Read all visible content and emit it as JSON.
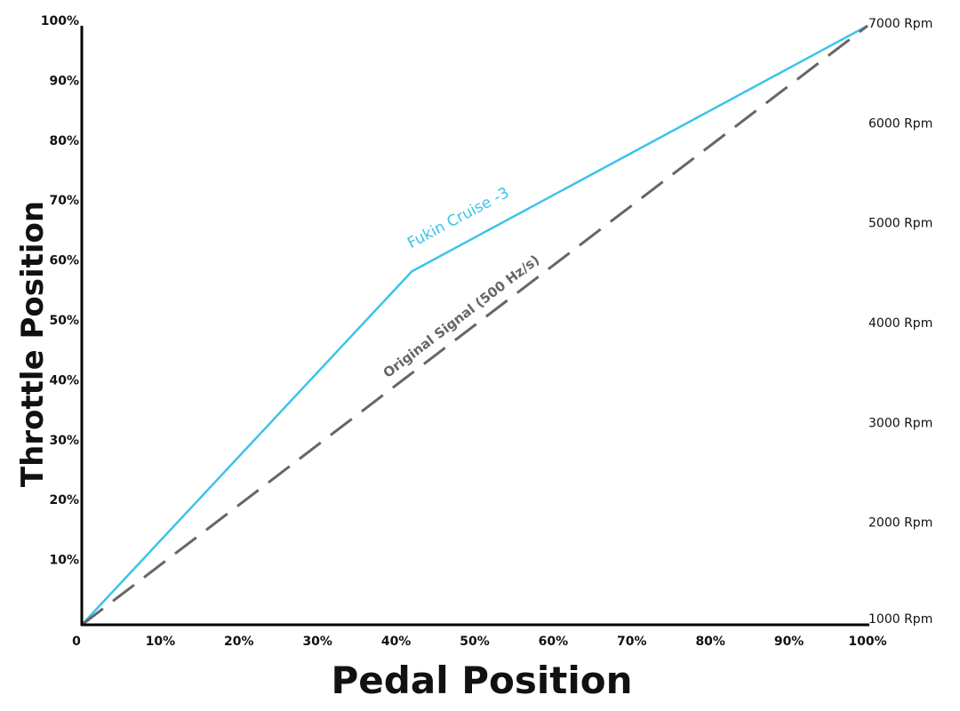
{
  "chart_data": {
    "type": "line",
    "title": "",
    "xlabel": "Pedal Position",
    "ylabel": "Throttle Position",
    "xlim": [
      0,
      100
    ],
    "ylim": [
      0,
      100
    ],
    "x_ticks": [
      "0",
      "10%",
      "20%",
      "30%",
      "40%",
      "50%",
      "60%",
      "70%",
      "80%",
      "90%",
      "100%"
    ],
    "y_ticks": [
      "10%",
      "20%",
      "30%",
      "40%",
      "50%",
      "60%",
      "70%",
      "80%",
      "90%",
      "100%"
    ],
    "y2_ticks": [
      "1000 Rpm",
      "2000 Rpm",
      "3000 Rpm",
      "4000 Rpm",
      "5000 Rpm",
      "6000 Rpm",
      "7000 Rpm"
    ],
    "y2lim": [
      1000,
      7000
    ],
    "grid": false,
    "series": [
      {
        "name": "Fukin Cruise -3",
        "color": "#3dc3ea",
        "style": "solid",
        "x": [
          0,
          42,
          100
        ],
        "y": [
          0,
          59,
          100
        ]
      },
      {
        "name": "Original Signal (500 Hz/s)",
        "color": "#666666",
        "style": "dashed",
        "x": [
          0,
          100
        ],
        "y": [
          0,
          100
        ]
      }
    ]
  }
}
